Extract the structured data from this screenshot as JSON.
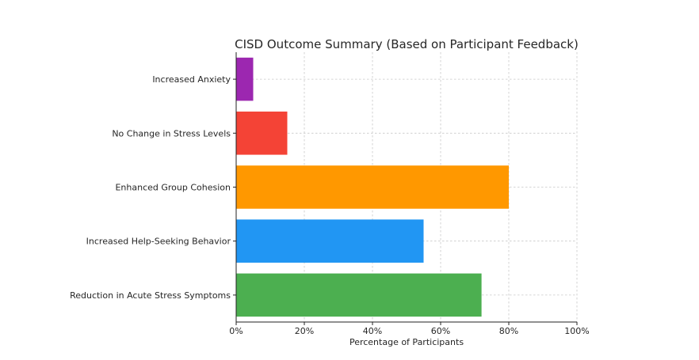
{
  "chart_data": {
    "type": "bar",
    "orientation": "horizontal",
    "title": "CISD Outcome Summary (Based on Participant Feedback)",
    "xlabel": "Percentage of Participants",
    "ylabel": "",
    "categories": [
      "Reduction in Acute Stress Symptoms",
      "Increased Help-Seeking Behavior",
      "Enhanced Group Cohesion",
      "No Change in Stress Levels",
      "Increased Anxiety"
    ],
    "values": [
      72,
      55,
      80,
      15,
      5
    ],
    "colors": [
      "#4caf50",
      "#2196f3",
      "#ff9800",
      "#f44336",
      "#9c27b0"
    ],
    "xlim": [
      0,
      100
    ],
    "x_ticks": [
      0,
      20,
      40,
      60,
      80,
      100
    ],
    "x_tick_labels": [
      "0%",
      "20%",
      "40%",
      "60%",
      "80%",
      "100%"
    ],
    "grid": true
  }
}
